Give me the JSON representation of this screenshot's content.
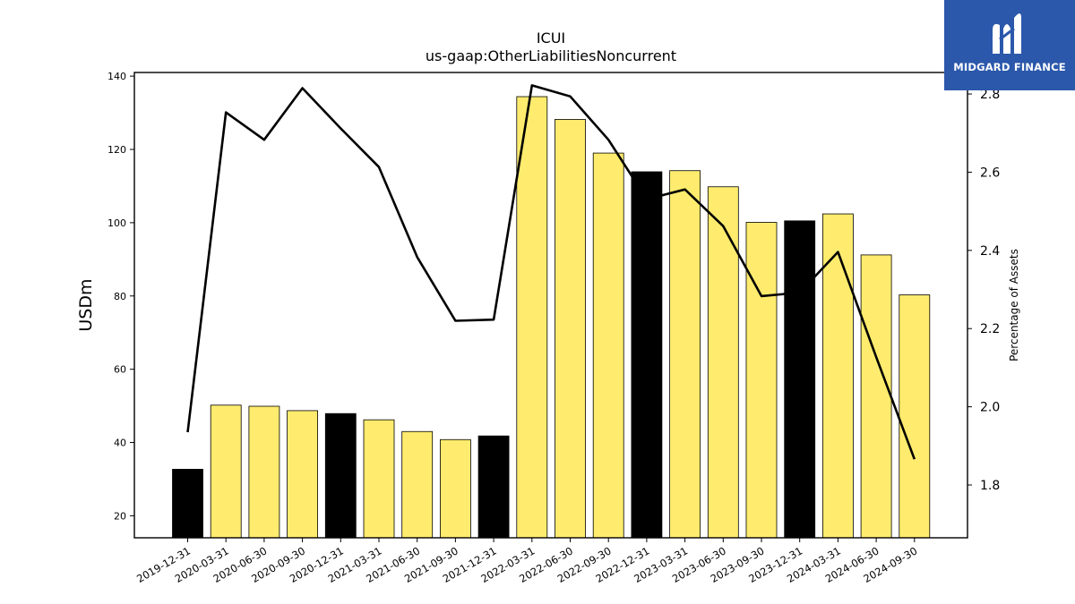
{
  "chart_data": {
    "type": "bar",
    "title": "ICUI",
    "subtitle": "us-gaap:OtherLiabilitiesNoncurrent",
    "ylabel": "USDm",
    "y2label": "Percentage of Assets",
    "ylim": [
      14,
      141
    ],
    "y2lim": [
      1.665,
      2.855
    ],
    "yticks": [
      20,
      40,
      60,
      80,
      100,
      120,
      140
    ],
    "y2ticks": [
      1.8,
      2.0,
      2.2,
      2.4,
      2.6,
      2.8
    ],
    "categories": [
      "2019-12-31",
      "2020-03-31",
      "2020-06-30",
      "2020-09-30",
      "2020-12-31",
      "2021-03-31",
      "2021-06-30",
      "2021-09-30",
      "2021-12-31",
      "2022-03-31",
      "2022-06-30",
      "2022-09-30",
      "2022-12-31",
      "2023-03-31",
      "2023-06-30",
      "2023-09-30",
      "2023-12-31",
      "2024-03-31",
      "2024-06-30",
      "2024-09-30"
    ],
    "series": [
      {
        "type": "bar",
        "values": [
          32.7,
          50.2,
          49.9,
          48.7,
          47.9,
          46.2,
          43.0,
          40.8,
          41.8,
          134.4,
          128.2,
          119.0,
          113.9,
          114.2,
          109.8,
          100.1,
          100.5,
          102.4,
          91.2,
          80.3
        ],
        "colors": [
          "#000000",
          "#ffec6e",
          "#ffec6e",
          "#ffec6e",
          "#000000",
          "#ffec6e",
          "#ffec6e",
          "#ffec6e",
          "#000000",
          "#ffec6e",
          "#ffec6e",
          "#ffec6e",
          "#000000",
          "#ffec6e",
          "#ffec6e",
          "#ffec6e",
          "#000000",
          "#ffec6e",
          "#ffec6e",
          "#ffec6e"
        ]
      },
      {
        "type": "line",
        "axis": "right",
        "color": "#000000",
        "values": [
          1.935,
          2.753,
          2.683,
          2.815,
          2.712,
          2.613,
          2.383,
          2.22,
          2.223,
          2.822,
          2.794,
          2.683,
          2.531,
          2.556,
          2.462,
          2.283,
          2.292,
          2.396,
          2.127,
          1.866
        ]
      }
    ],
    "grid": false,
    "legend": "none"
  },
  "branding": {
    "logo_text": "MIDGARD FINANCE",
    "logo_icon": "midgard-m-icon",
    "logo_bg": "#2b58ab"
  }
}
